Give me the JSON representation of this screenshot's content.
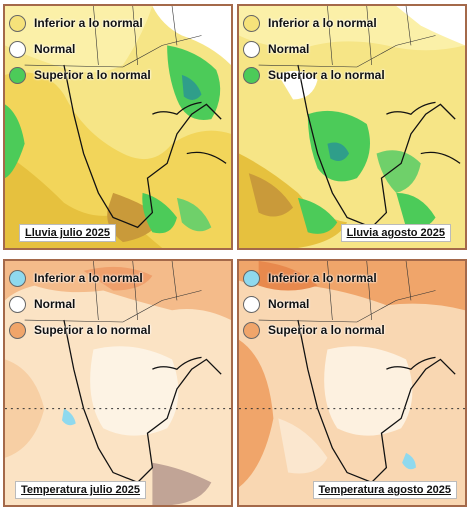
{
  "panels": [
    {
      "caption": "Lluvia julio 2025",
      "legend": [
        {
          "label": "Inferior a lo normal",
          "color": "#f6e27a"
        },
        {
          "label": "Normal",
          "color": "#ffffff"
        },
        {
          "label": "Superior a lo normal",
          "color": "#4ccb59"
        }
      ]
    },
    {
      "caption": "Lluvia agosto 2025",
      "legend": [
        {
          "label": "Inferior a lo normal",
          "color": "#f6e27a"
        },
        {
          "label": "Normal",
          "color": "#ffffff"
        },
        {
          "label": "Superior a lo normal",
          "color": "#4ccb59"
        }
      ]
    },
    {
      "caption": "Temperatura julio 2025",
      "legend": [
        {
          "label": "Inferior a lo normal",
          "color": "#8fd9ee"
        },
        {
          "label": "Normal",
          "color": "#ffffff"
        },
        {
          "label": "Superior a lo normal",
          "color": "#f0a56a"
        }
      ]
    },
    {
      "caption": "Temperatura agosto 2025",
      "legend": [
        {
          "label": "Inferior a lo normal",
          "color": "#8fd9ee"
        },
        {
          "label": "Normal",
          "color": "#ffffff"
        },
        {
          "label": "Superior a lo normal",
          "color": "#f0a56a"
        }
      ]
    }
  ]
}
